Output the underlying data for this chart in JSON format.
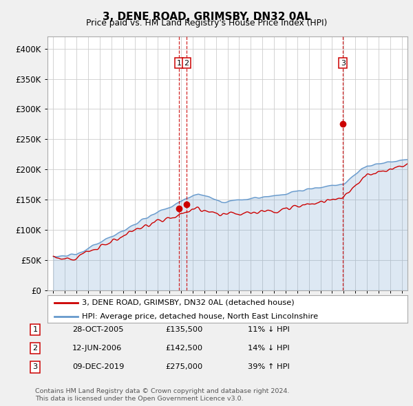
{
  "title": "3, DENE ROAD, GRIMSBY, DN32 0AL",
  "subtitle": "Price paid vs. HM Land Registry's House Price Index (HPI)",
  "red_label": "3, DENE ROAD, GRIMSBY, DN32 0AL (detached house)",
  "blue_label": "HPI: Average price, detached house, North East Lincolnshire",
  "footer1": "Contains HM Land Registry data © Crown copyright and database right 2024.",
  "footer2": "This data is licensed under the Open Government Licence v3.0.",
  "transactions": [
    {
      "num": 1,
      "date": "28-OCT-2005",
      "price": 135500,
      "pct": "11%",
      "dir": "↓",
      "year": 2005.83
    },
    {
      "num": 2,
      "date": "12-JUN-2006",
      "price": 142500,
      "pct": "14%",
      "dir": "↓",
      "year": 2006.45
    },
    {
      "num": 3,
      "date": "09-DEC-2019",
      "price": 275000,
      "pct": "39%",
      "dir": "↑",
      "year": 2019.94
    }
  ],
  "ylim": [
    0,
    420000
  ],
  "yticks": [
    0,
    50000,
    100000,
    150000,
    200000,
    250000,
    300000,
    350000,
    400000
  ],
  "xlim": [
    1994.5,
    2025.5
  ],
  "background_color": "#f0f0f0",
  "plot_bg": "#ffffff",
  "grid_color": "#cccccc",
  "red_color": "#cc0000",
  "blue_color": "#6699cc"
}
